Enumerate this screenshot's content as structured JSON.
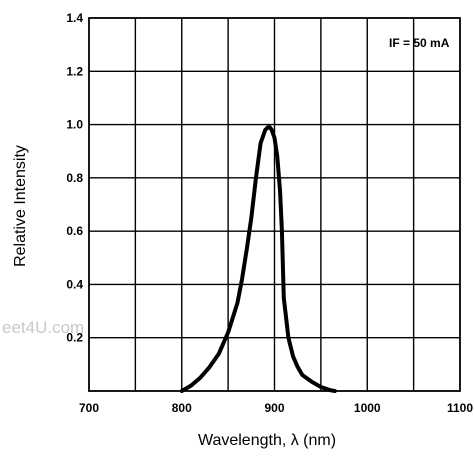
{
  "chart_data": {
    "type": "line",
    "title": "",
    "xlabel": "Wavelength, λ (nm)",
    "ylabel": "Relative Intensity",
    "xlim": [
      700,
      1100
    ],
    "ylim": [
      0,
      1.4
    ],
    "grid": true,
    "x_ticks": [
      700,
      800,
      900,
      1000,
      1100
    ],
    "x_tick_labels": [
      "700",
      "800",
      "900",
      "1000",
      "1100"
    ],
    "y_ticks": [
      0.2,
      0.4,
      0.6,
      0.8,
      1.0,
      1.2,
      1.4
    ],
    "y_tick_labels": [
      "0.2",
      "0.4",
      "0.6",
      "0.8",
      "1.0",
      "1.2",
      "1.4"
    ],
    "annotation": "IF = 50 mA",
    "watermark": "eet4U.com",
    "series": [
      {
        "x": [
          800,
          810,
          820,
          830,
          840,
          850,
          860,
          865,
          870,
          875,
          880,
          885,
          890,
          893,
          895,
          897,
          900,
          903,
          906,
          908,
          910,
          915,
          920,
          925,
          930,
          940,
          950,
          960,
          965
        ],
        "y": [
          0.0,
          0.02,
          0.05,
          0.09,
          0.14,
          0.22,
          0.33,
          0.42,
          0.53,
          0.65,
          0.8,
          0.93,
          0.98,
          0.99,
          0.99,
          0.98,
          0.95,
          0.88,
          0.75,
          0.6,
          0.35,
          0.2,
          0.13,
          0.09,
          0.06,
          0.035,
          0.015,
          0.003,
          0.0
        ]
      }
    ]
  }
}
